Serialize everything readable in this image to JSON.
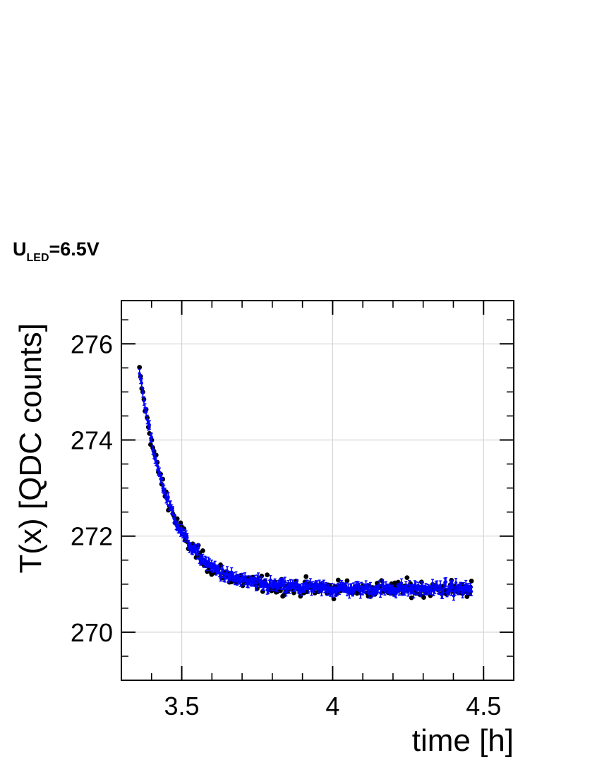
{
  "annotation": {
    "main": "U",
    "subscript": "LED",
    "suffix": "=6.5V"
  },
  "chart_data": {
    "type": "scatter",
    "xlabel": "time [h]",
    "ylabel": "T(x) [QDC counts]",
    "xlim": [
      3.3,
      4.6
    ],
    "ylim": [
      269.0,
      276.9
    ],
    "xticks": [
      3.5,
      4,
      4.5
    ],
    "xtick_labels": [
      "3.5",
      "4",
      "4.5"
    ],
    "yticks": [
      270,
      272,
      274,
      276
    ],
    "ytick_labels": [
      "270",
      "272",
      "274",
      "276"
    ],
    "grid": true,
    "series": [
      {
        "marker": "circle",
        "color": "#000000",
        "model": "exponential decay",
        "x_start": 3.36,
        "x_end": 4.46,
        "n_points": 300,
        "y_first": 275.4,
        "y_last": 270.8,
        "y_plateau": 270.9,
        "decay_time_h": 0.105,
        "scatter": 0.12
      },
      {
        "marker": "errorbar",
        "color": "#0000ff",
        "model": "exponential decay",
        "x_start": 3.36,
        "x_end": 4.46,
        "n_points": 300,
        "y_first": 275.4,
        "y_last": 270.8,
        "y_plateau": 270.9,
        "decay_time_h": 0.105,
        "scatter": 0.08,
        "error": 0.09
      }
    ]
  }
}
